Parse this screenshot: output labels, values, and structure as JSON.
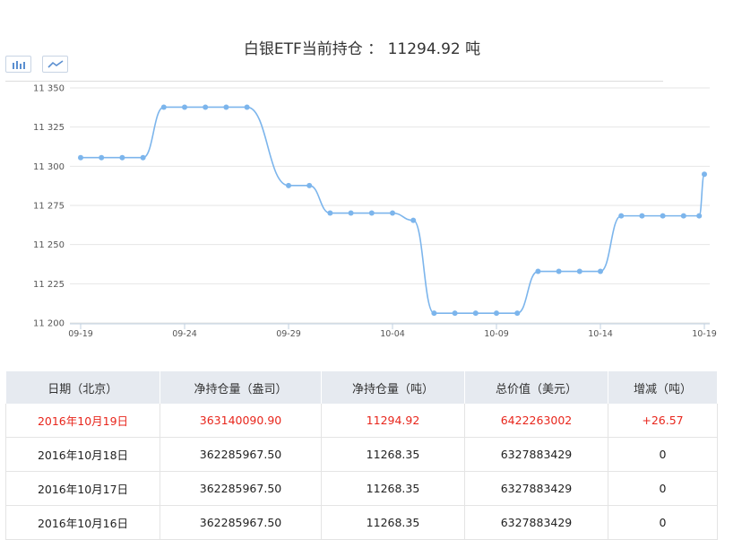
{
  "title": "白银ETF当前持仓 ： 11294.92 吨",
  "toolbar": {
    "bar_icon": "bar-chart-icon",
    "line_icon": "line-chart-icon"
  },
  "colors": {
    "line": "#7cb5ec",
    "highlight": "#e8261c",
    "header_bg": "#e6eaf0"
  },
  "chart_data": {
    "type": "line",
    "x": [
      "09-19",
      "09-20",
      "09-21",
      "09-22",
      "09-23",
      "09-24",
      "09-25",
      "09-26",
      "09-27",
      "09-28",
      "09-29",
      "09-30",
      "10-01",
      "10-02",
      "10-03",
      "10-04",
      "10-05",
      "10-06",
      "10-07",
      "10-08",
      "10-09",
      "10-10",
      "10-11",
      "10-12",
      "10-13",
      "10-14",
      "10-15",
      "10-16",
      "10-17",
      "10-18",
      "10-19"
    ],
    "points": [
      {
        "x": "09-19",
        "y": 11305.5
      },
      {
        "x": "09-20",
        "y": 11305.5
      },
      {
        "x": "09-21",
        "y": 11305.5
      },
      {
        "x": "09-22",
        "y": 11305.5
      },
      {
        "x": "09-23",
        "y": 11337.7
      },
      {
        "x": "09-24",
        "y": 11337.7
      },
      {
        "x": "09-25",
        "y": 11337.7
      },
      {
        "x": "09-26",
        "y": 11337.7
      },
      {
        "x": "09-27",
        "y": 11337.7
      },
      {
        "x": "09-29",
        "y": 11287.7
      },
      {
        "x": "09-30",
        "y": 11287.7
      },
      {
        "x": "10-01",
        "y": 11270.1
      },
      {
        "x": "10-02",
        "y": 11270.1
      },
      {
        "x": "10-03",
        "y": 11270.1
      },
      {
        "x": "10-04",
        "y": 11270.1
      },
      {
        "x": "10-05",
        "y": 11265.5
      },
      {
        "x": "10-06",
        "y": 11206.2
      },
      {
        "x": "10-07",
        "y": 11206.2
      },
      {
        "x": "10-08",
        "y": 11206.2
      },
      {
        "x": "10-09",
        "y": 11206.2
      },
      {
        "x": "10-10",
        "y": 11206.2
      },
      {
        "x": "10-11",
        "y": 11232.9
      },
      {
        "x": "10-12",
        "y": 11232.9
      },
      {
        "x": "10-13",
        "y": 11232.9
      },
      {
        "x": "10-14",
        "y": 11232.9
      },
      {
        "x": "10-15",
        "y": 11268.35
      },
      {
        "x": "10-16",
        "y": 11268.35
      },
      {
        "x": "10-17",
        "y": 11268.35
      },
      {
        "x": "10-18",
        "y": 11268.35
      },
      {
        "x": "10-19",
        "y": 11268.35
      },
      {
        "x": "10-19",
        "y": 11294.92
      }
    ],
    "xticks": [
      "09-19",
      "09-24",
      "09-29",
      "10-04",
      "10-09",
      "10-14",
      "10-19"
    ],
    "ylim": [
      11200,
      11350
    ],
    "yticks": [
      {
        "value": 11200,
        "label": "11 200"
      },
      {
        "value": 11225,
        "label": "11 225"
      },
      {
        "value": 11250,
        "label": "11 250"
      },
      {
        "value": 11275,
        "label": "11 275"
      },
      {
        "value": 11300,
        "label": "11 300"
      },
      {
        "value": 11325,
        "label": "11 325"
      },
      {
        "value": 11350,
        "label": "11 350"
      }
    ],
    "grid": true
  },
  "table": {
    "headers": [
      "日期（北京）",
      "净持仓量（盎司）",
      "净持仓量（吨）",
      "总价值（美元）",
      "增减（吨）"
    ],
    "rows": [
      [
        "2016年10月19日",
        "363140090.90",
        "11294.92",
        "6422263002",
        "+26.57"
      ],
      [
        "2016年10月18日",
        "362285967.50",
        "11268.35",
        "6327883429",
        "0"
      ],
      [
        "2016年10月17日",
        "362285967.50",
        "11268.35",
        "6327883429",
        "0"
      ],
      [
        "2016年10月16日",
        "362285967.50",
        "11268.35",
        "6327883429",
        "0"
      ]
    ]
  }
}
